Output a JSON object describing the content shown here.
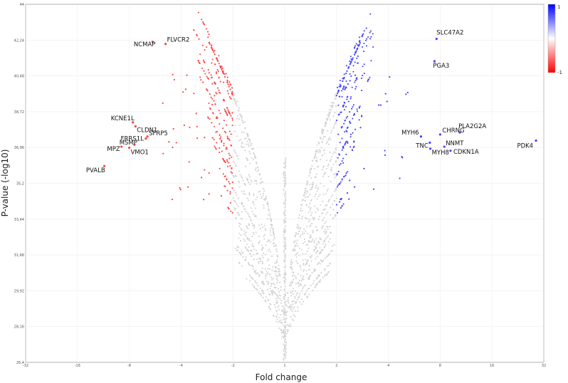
{
  "chart_data": {
    "type": "scatter",
    "subtype": "volcano",
    "title": "",
    "xlabel": "Fold change",
    "ylabel": "P-value (-log10)",
    "x_scale": "log2-symmetric",
    "x_ticks": [
      "-32",
      "-16",
      "-8",
      "-4",
      "-2",
      "1",
      "2",
      "4",
      "8",
      "16",
      "32"
    ],
    "y_ticks": [
      "26,4",
      "28,16",
      "29,92",
      "31,68",
      "33,44",
      "35,2",
      "36,96",
      "38,72",
      "40,48",
      "42,24",
      "44"
    ],
    "ylim": [
      26.4,
      44
    ],
    "grid": true,
    "colorbar": {
      "max_label": "1",
      "min_label": "-1",
      "colors": [
        "#0000ff",
        "#ffffff",
        "#ff0000"
      ]
    },
    "series_colors": {
      "down": "#ff4444",
      "up": "#4444ff",
      "ns": "#d3d3d3"
    },
    "fold_threshold": 2,
    "labeled_genes": [
      {
        "name": "SLC47A2",
        "log2fc": 2.93,
        "p": 42.3
      },
      {
        "name": "PGA3",
        "log2fc": 2.89,
        "p": 41.2
      },
      {
        "name": "PLA2G2A",
        "log2fc": 3.38,
        "p": 37.7
      },
      {
        "name": "PDK4",
        "log2fc": 4.85,
        "p": 37.3
      },
      {
        "name": "MYH6",
        "log2fc": 2.63,
        "p": 37.5
      },
      {
        "name": "CHRNG",
        "log2fc": 3.0,
        "p": 37.6
      },
      {
        "name": "TNC",
        "log2fc": 2.8,
        "p": 37.2
      },
      {
        "name": "NNMT",
        "log2fc": 3.08,
        "p": 37.0
      },
      {
        "name": "CDKN1A",
        "log2fc": 3.2,
        "p": 36.8
      },
      {
        "name": "MYH8",
        "log2fc": 2.81,
        "p": 36.9
      },
      {
        "name": "FLVCR2",
        "log2fc": -2.3,
        "p": 42.05
      },
      {
        "name": "NCMAP",
        "log2fc": -2.55,
        "p": 42.15
      },
      {
        "name": "KCNE1L",
        "log2fc": -2.93,
        "p": 38.2
      },
      {
        "name": "CLDN1",
        "log2fc": -2.88,
        "p": 38.0
      },
      {
        "name": "FRRS1L",
        "log2fc": -2.68,
        "p": 37.4
      },
      {
        "name": "SFRP5",
        "log2fc": -2.65,
        "p": 37.5
      },
      {
        "name": "MSMP",
        "log2fc": -2.9,
        "p": 37.1
      },
      {
        "name": "MPZ",
        "log2fc": -3.15,
        "p": 37.0
      },
      {
        "name": "VMO1",
        "log2fc": -3.0,
        "p": 36.95
      },
      {
        "name": "PVALB",
        "log2fc": -3.48,
        "p": 36.05
      }
    ]
  }
}
